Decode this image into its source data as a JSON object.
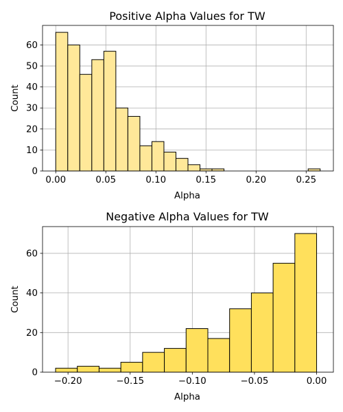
{
  "chart_data": [
    {
      "type": "bar",
      "title": "Positive Alpha Values for TW",
      "xlabel": "Alpha",
      "ylabel": "Count",
      "bar_color": "#ffe899",
      "edge_color": "#000000",
      "grid": true,
      "xlim": [
        -0.0132,
        0.2772
      ],
      "ylim": [
        0,
        69.3
      ],
      "xticks": [
        0.0,
        0.05,
        0.1,
        0.15,
        0.2,
        0.25
      ],
      "xtick_labels": [
        "0.00",
        "0.05",
        "0.10",
        "0.15",
        "0.20",
        "0.25"
      ],
      "yticks": [
        0,
        10,
        20,
        30,
        40,
        50,
        60
      ],
      "ytick_labels": [
        "0",
        "10",
        "20",
        "30",
        "40",
        "50",
        "60"
      ],
      "bins": [
        {
          "x0": 0.0,
          "x1": 0.012,
          "count": 66
        },
        {
          "x0": 0.012,
          "x1": 0.024,
          "count": 60
        },
        {
          "x0": 0.024,
          "x1": 0.036,
          "count": 46
        },
        {
          "x0": 0.036,
          "x1": 0.048,
          "count": 53
        },
        {
          "x0": 0.048,
          "x1": 0.06,
          "count": 57
        },
        {
          "x0": 0.06,
          "x1": 0.072,
          "count": 30
        },
        {
          "x0": 0.072,
          "x1": 0.084,
          "count": 26
        },
        {
          "x0": 0.084,
          "x1": 0.096,
          "count": 12
        },
        {
          "x0": 0.096,
          "x1": 0.108,
          "count": 14
        },
        {
          "x0": 0.108,
          "x1": 0.12,
          "count": 9
        },
        {
          "x0": 0.12,
          "x1": 0.132,
          "count": 6
        },
        {
          "x0": 0.132,
          "x1": 0.144,
          "count": 3
        },
        {
          "x0": 0.144,
          "x1": 0.156,
          "count": 1
        },
        {
          "x0": 0.156,
          "x1": 0.168,
          "count": 1
        },
        {
          "x0": 0.168,
          "x1": 0.18,
          "count": 0
        },
        {
          "x0": 0.18,
          "x1": 0.192,
          "count": 0
        },
        {
          "x0": 0.192,
          "x1": 0.204,
          "count": 0
        },
        {
          "x0": 0.204,
          "x1": 0.216,
          "count": 0
        },
        {
          "x0": 0.216,
          "x1": 0.228,
          "count": 0
        },
        {
          "x0": 0.228,
          "x1": 0.24,
          "count": 0
        },
        {
          "x0": 0.24,
          "x1": 0.252,
          "count": 0
        },
        {
          "x0": 0.252,
          "x1": 0.264,
          "count": 1
        }
      ]
    },
    {
      "type": "bar",
      "title": "Negative Alpha Values for TW",
      "xlabel": "Alpha",
      "ylabel": "Count",
      "bar_color": "#ffe05c",
      "edge_color": "#000000",
      "grid": true,
      "xlim": [
        -0.2205,
        0.0135
      ],
      "ylim": [
        0,
        73.5
      ],
      "xticks": [
        -0.2,
        -0.15,
        -0.1,
        -0.05,
        0.0
      ],
      "xtick_labels": [
        "−0.20",
        "−0.15",
        "−0.10",
        "−0.05",
        "0.00"
      ],
      "yticks": [
        0,
        20,
        40,
        60
      ],
      "ytick_labels": [
        "0",
        "20",
        "40",
        "60"
      ],
      "bins": [
        {
          "x0": -0.21,
          "x1": -0.1925,
          "count": 2
        },
        {
          "x0": -0.1925,
          "x1": -0.175,
          "count": 3
        },
        {
          "x0": -0.175,
          "x1": -0.1575,
          "count": 2
        },
        {
          "x0": -0.1575,
          "x1": -0.14,
          "count": 5
        },
        {
          "x0": -0.14,
          "x1": -0.1225,
          "count": 10
        },
        {
          "x0": -0.1225,
          "x1": -0.105,
          "count": 12
        },
        {
          "x0": -0.105,
          "x1": -0.0875,
          "count": 22
        },
        {
          "x0": -0.0875,
          "x1": -0.07,
          "count": 17
        },
        {
          "x0": -0.07,
          "x1": -0.0525,
          "count": 32
        },
        {
          "x0": -0.0525,
          "x1": -0.035,
          "count": 40
        },
        {
          "x0": -0.035,
          "x1": -0.0175,
          "count": 55
        },
        {
          "x0": -0.0175,
          "x1": 0.0,
          "count": 70
        }
      ]
    }
  ]
}
